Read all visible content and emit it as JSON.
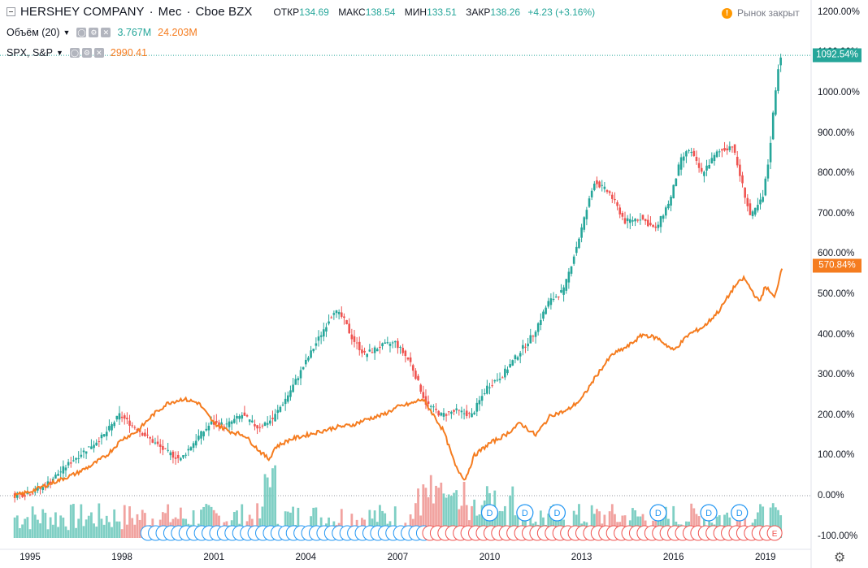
{
  "header": {
    "symbol": "HERSHEY COMPANY",
    "interval": "Мес",
    "exchange": "Cboe BZX",
    "open_label": "ОТКР",
    "open": "134.69",
    "high_label": "МАКС",
    "high": "138.54",
    "low_label": "МИН",
    "low": "133.51",
    "close_label": "ЗАКР",
    "close": "138.26",
    "change": "+4.23 (+3.16%)",
    "market_status": "Рынок закрыт"
  },
  "volume_legend": {
    "label": "Объём (20)",
    "value1": "3.767M",
    "value2": "24.203M"
  },
  "compare_legend": {
    "label": "SPX, S&P",
    "value": "2990.41"
  },
  "price_tags": {
    "main": "1092.54%",
    "compare": "570.84%"
  },
  "colors": {
    "up": "#26a69a",
    "down": "#ef5350",
    "compare": "#f57c1f",
    "up_vol": "#7fcfc4",
    "down_vol": "#f1a3a0"
  },
  "icons": {
    "collapse": "minus-square-icon",
    "settings": "gear-icon",
    "alert": "exclamation-icon"
  },
  "chart_data": {
    "type": "line",
    "yscale": "percent",
    "ylim": [
      -100,
      1200
    ],
    "y_ticks": [
      "1200.00%",
      "1100.00%",
      "1000.00%",
      "900.00%",
      "800.00%",
      "700.00%",
      "600.00%",
      "500.00%",
      "400.00%",
      "300.00%",
      "200.00%",
      "100.00%",
      "0.00%",
      "-100.00%"
    ],
    "x_ticks": [
      "1995",
      "1998",
      "2001",
      "2004",
      "2007",
      "2010",
      "2013",
      "2016",
      "2019"
    ],
    "xlim": [
      1994.5,
      2020.8
    ],
    "series": [
      {
        "name": "HERSHEY COMPANY",
        "style": "candles",
        "x": [
          1994.5,
          1995,
          1995.5,
          1996,
          1996.5,
          1997,
          1997.5,
          1998,
          1998.5,
          1999,
          1999.5,
          2000,
          2000.5,
          2001,
          2001.5,
          2002,
          2002.5,
          2003,
          2003.5,
          2004,
          2004.5,
          2005,
          2005.3,
          2005.6,
          2006,
          2006.5,
          2007,
          2007.5,
          2008,
          2008.5,
          2009,
          2009.5,
          2010,
          2010.5,
          2011,
          2011.5,
          2012,
          2012.5,
          2013,
          2013.5,
          2014,
          2014.5,
          2015,
          2015.5,
          2016,
          2016.3,
          2016.6,
          2017,
          2017.5,
          2018,
          2018.3,
          2018.6,
          2019,
          2019.2,
          2019.4,
          2019.55
        ],
        "values": [
          0,
          5,
          20,
          55,
          90,
          120,
          150,
          200,
          170,
          140,
          110,
          90,
          140,
          180,
          175,
          200,
          170,
          190,
          250,
          320,
          390,
          460,
          440,
          390,
          350,
          370,
          380,
          330,
          230,
          200,
          210,
          200,
          270,
          300,
          350,
          400,
          480,
          510,
          640,
          780,
          750,
          680,
          690,
          660,
          740,
          830,
          860,
          800,
          850,
          870,
          780,
          690,
          740,
          840,
          1000,
          1092.54
        ]
      },
      {
        "name": "SPX, S&P",
        "style": "line",
        "x": [
          1994.5,
          1995,
          1995.5,
          1996,
          1996.5,
          1997,
          1997.5,
          1998,
          1998.5,
          1999,
          1999.5,
          2000,
          2000.5,
          2001,
          2001.5,
          2002,
          2002.5,
          2002.8,
          2003,
          2003.5,
          2004,
          2004.5,
          2005,
          2005.5,
          2006,
          2006.5,
          2007,
          2007.5,
          2007.8,
          2008,
          2008.5,
          2008.9,
          2009.2,
          2009.5,
          2010,
          2010.5,
          2011,
          2011.5,
          2012,
          2012.5,
          2013,
          2013.5,
          2014,
          2014.5,
          2015,
          2015.5,
          2016,
          2016.5,
          2017,
          2017.5,
          2018,
          2018.3,
          2018.8,
          2019,
          2019.3,
          2019.55
        ],
        "values": [
          0,
          10,
          25,
          40,
          55,
          75,
          100,
          140,
          160,
          200,
          230,
          240,
          230,
          180,
          160,
          150,
          110,
          90,
          120,
          140,
          150,
          160,
          170,
          175,
          190,
          200,
          220,
          230,
          240,
          220,
          160,
          70,
          40,
          100,
          130,
          150,
          180,
          150,
          200,
          210,
          240,
          300,
          350,
          370,
          400,
          390,
          360,
          400,
          420,
          460,
          520,
          540,
          480,
          520,
          490,
          570.84
        ]
      }
    ],
    "events": {
      "dividend_label": "D",
      "earnings_label": "E"
    }
  }
}
